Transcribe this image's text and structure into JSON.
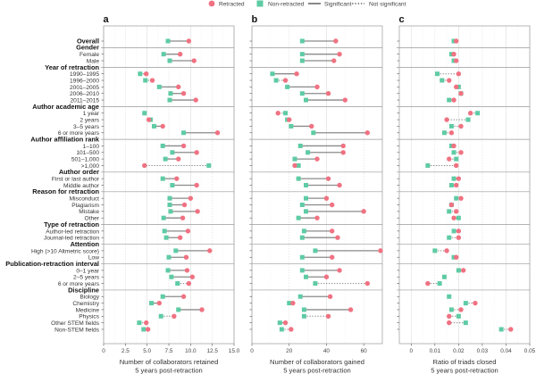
{
  "legend": {
    "retracted": "Retracted",
    "non_retracted": "Non-retracted",
    "significant": "Significant",
    "not_significant": "Not significant"
  },
  "colors": {
    "retracted": "#f07282",
    "non_retracted": "#5ecba4",
    "line": "#8a8a8a",
    "grid": "#dddddd",
    "frame": "#999999"
  },
  "chart_data": [
    {
      "type": "dumbbell",
      "panel": "a",
      "xlabel": "Number of collaborators retained\n5 years post-retraction",
      "xlabel_lines": [
        "Number of collaborators retained",
        "5 years post-retraction"
      ],
      "xlim": [
        0,
        15
      ],
      "xticks": [
        0,
        2.5,
        5.0,
        7.5,
        10.0,
        12.5,
        15.0
      ],
      "xtick_labels": [
        "0",
        "2.5",
        "5.0",
        "7.5",
        "10.0",
        "12.5",
        "15.0"
      ],
      "grid": true,
      "rows": [
        {
          "label": "Overall",
          "header": true,
          "retracted": 9.8,
          "non_retracted": 7.4,
          "sig": true
        },
        {
          "label": "Gender",
          "header": true
        },
        {
          "label": "Female",
          "retracted": 8.8,
          "non_retracted": 6.9,
          "sig": true
        },
        {
          "label": "Male",
          "retracted": 10.4,
          "non_retracted": 7.6,
          "sig": true
        },
        {
          "label": "Year of retraction",
          "header": true
        },
        {
          "label": "1990–1995",
          "retracted": 4.9,
          "non_retracted": 4.2,
          "sig": false
        },
        {
          "label": "1996–2000",
          "retracted": 5.6,
          "non_retracted": 4.8,
          "sig": false
        },
        {
          "label": "2001–2005",
          "retracted": 8.6,
          "non_retracted": 6.4,
          "sig": true
        },
        {
          "label": "2006–2010",
          "retracted": 9.2,
          "non_retracted": 7.7,
          "sig": true
        },
        {
          "label": "2011–2015",
          "retracted": 10.6,
          "non_retracted": 7.6,
          "sig": true
        },
        {
          "label": "Author academic age",
          "header": true
        },
        {
          "label": "1 year",
          "retracted": null,
          "non_retracted": 4.7,
          "sig": true
        },
        {
          "label": "2 years",
          "retracted": 5.2,
          "non_retracted": 5.4,
          "sig": true
        },
        {
          "label": "3–5 years",
          "retracted": 6.8,
          "non_retracted": 5.8,
          "sig": true
        },
        {
          "label": "6 or more years",
          "retracted": 13.1,
          "non_retracted": 9.2,
          "sig": true
        },
        {
          "label": "Author affiliation rank",
          "header": true
        },
        {
          "label": "1–100",
          "retracted": 9.2,
          "non_retracted": 6.8,
          "sig": true
        },
        {
          "label": "101–500",
          "retracted": 10.7,
          "non_retracted": 7.9,
          "sig": true
        },
        {
          "label": "501–1,000",
          "retracted": 8.6,
          "non_retracted": 7.1,
          "sig": true
        },
        {
          "label": ">1,000",
          "retracted": 4.7,
          "non_retracted": 12.1,
          "sig": false
        },
        {
          "label": "Author order",
          "header": true
        },
        {
          "label": "First or last author",
          "retracted": 8.4,
          "non_retracted": 6.8,
          "sig": true
        },
        {
          "label": "Middle author",
          "retracted": 10.7,
          "non_retracted": 7.9,
          "sig": true
        },
        {
          "label": "Reason for retraction",
          "header": true
        },
        {
          "label": "Misconduct",
          "retracted": 10.0,
          "non_retracted": 7.6,
          "sig": true
        },
        {
          "label": "Plagiarism",
          "retracted": 9.3,
          "non_retracted": 7.6,
          "sig": true
        },
        {
          "label": "Mistake",
          "retracted": 10.8,
          "non_retracted": 7.7,
          "sig": true
        },
        {
          "label": "Other",
          "retracted": 9.1,
          "non_retracted": 6.9,
          "sig": true
        },
        {
          "label": "Type of retraction",
          "header": true
        },
        {
          "label": "Author-led retraction",
          "retracted": 9.7,
          "non_retracted": 7.0,
          "sig": true
        },
        {
          "label": "Journal-led retraction",
          "retracted": 8.8,
          "non_retracted": 7.2,
          "sig": true
        },
        {
          "label": "Attention",
          "header": true
        },
        {
          "label": "High (>10 Altmetric score)",
          "retracted": 12.2,
          "non_retracted": 8.3,
          "sig": true
        },
        {
          "label": "Low",
          "retracted": 9.5,
          "non_retracted": 7.5,
          "sig": true
        },
        {
          "label": "Publication-retraction interval",
          "header": true
        },
        {
          "label": "0–1 year",
          "retracted": 9.6,
          "non_retracted": 7.4,
          "sig": true
        },
        {
          "label": "2–5 years",
          "retracted": 10.2,
          "non_retracted": 7.8,
          "sig": true
        },
        {
          "label": "6 or more years",
          "retracted": 9.8,
          "non_retracted": 8.5,
          "sig": false
        },
        {
          "label": "Discipline",
          "header": true
        },
        {
          "label": "Biology",
          "retracted": 9.2,
          "non_retracted": 6.8,
          "sig": true
        },
        {
          "label": "Chemistry",
          "retracted": 6.4,
          "non_retracted": 5.5,
          "sig": true
        },
        {
          "label": "Medicine",
          "retracted": 11.3,
          "non_retracted": 8.6,
          "sig": true
        },
        {
          "label": "Physics",
          "retracted": 8.1,
          "non_retracted": 6.6,
          "sig": false
        },
        {
          "label": "Other STEM fields",
          "retracted": 4.9,
          "non_retracted": 4.1,
          "sig": false
        },
        {
          "label": "Non-STEM fields",
          "retracted": 5.1,
          "non_retracted": 4.6,
          "sig": false
        }
      ]
    },
    {
      "type": "dumbbell",
      "panel": "b",
      "xlabel_lines": [
        "Number of collaborators gained",
        "5 years post-retraction"
      ],
      "xlim": [
        0,
        70
      ],
      "xticks": [
        0,
        20,
        40,
        60
      ],
      "xtick_labels": [
        "0",
        "20",
        "40",
        "60"
      ],
      "grid": true,
      "rows": [
        {
          "label": "Overall",
          "retracted": 45,
          "non_retracted": 27,
          "sig": true
        },
        {
          "label": "Gender",
          "header": true
        },
        {
          "label": "Female",
          "retracted": 47,
          "non_retracted": 27,
          "sig": true
        },
        {
          "label": "Male",
          "retracted": 44,
          "non_retracted": 27,
          "sig": true
        },
        {
          "label": "Year of retraction",
          "header": true
        },
        {
          "label": "1990–1995",
          "retracted": 24,
          "non_retracted": 11,
          "sig": true
        },
        {
          "label": "1996–2000",
          "retracted": 18,
          "non_retracted": 13,
          "sig": false
        },
        {
          "label": "2001–2005",
          "retracted": 35,
          "non_retracted": 19,
          "sig": true
        },
        {
          "label": "2006–2010",
          "retracted": 41,
          "non_retracted": 27,
          "sig": true
        },
        {
          "label": "2011–2015",
          "retracted": 50,
          "non_retracted": 29,
          "sig": true
        },
        {
          "label": "Author academic age",
          "header": true
        },
        {
          "label": "1 year",
          "retracted": 14,
          "non_retracted": 18,
          "sig": false
        },
        {
          "label": "2 years",
          "retracted": 20,
          "non_retracted": 19,
          "sig": true
        },
        {
          "label": "3–5 years",
          "retracted": 32,
          "non_retracted": 21,
          "sig": true
        },
        {
          "label": "6 or more years",
          "retracted": 62,
          "non_retracted": 33,
          "sig": true
        },
        {
          "label": "Author affiliation rank",
          "header": true
        },
        {
          "label": "1–100",
          "retracted": 49,
          "non_retracted": 26,
          "sig": true
        },
        {
          "label": "101–500",
          "retracted": 49,
          "non_retracted": 30,
          "sig": true
        },
        {
          "label": "501–1,000",
          "retracted": 35,
          "non_retracted": 23,
          "sig": true
        },
        {
          "label": ">1,000",
          "retracted": 23,
          "non_retracted": 25,
          "sig": true
        },
        {
          "label": "Author order",
          "header": true
        },
        {
          "label": "First or last author",
          "retracted": 41,
          "non_retracted": 25,
          "sig": true
        },
        {
          "label": "Middle author",
          "retracted": 47,
          "non_retracted": 29,
          "sig": true
        },
        {
          "label": "Reason for retraction",
          "header": true
        },
        {
          "label": "Misconduct",
          "retracted": 40,
          "non_retracted": 29,
          "sig": true
        },
        {
          "label": "Plagiarism",
          "retracted": 43,
          "non_retracted": 27,
          "sig": true
        },
        {
          "label": "Mistake",
          "retracted": 60,
          "non_retracted": 29,
          "sig": true
        },
        {
          "label": "Other",
          "retracted": 35,
          "non_retracted": 25,
          "sig": true
        },
        {
          "label": "Type of retraction",
          "header": true
        },
        {
          "label": "Author-led retraction",
          "retracted": 43,
          "non_retracted": 28,
          "sig": true
        },
        {
          "label": "Journal-led retraction",
          "retracted": 46,
          "non_retracted": 27,
          "sig": true
        },
        {
          "label": "Attention",
          "header": true
        },
        {
          "label": "High (>10 Altmetric score)",
          "retracted": 69,
          "non_retracted": 34,
          "sig": true
        },
        {
          "label": "Low",
          "retracted": 43,
          "non_retracted": 27,
          "sig": true
        },
        {
          "label": "Publication-retraction interval",
          "header": true
        },
        {
          "label": "0–1 year",
          "retracted": 47,
          "non_retracted": 27,
          "sig": true
        },
        {
          "label": "2–5 years",
          "retracted": 40,
          "non_retracted": 29,
          "sig": true
        },
        {
          "label": "6 or more years",
          "retracted": 62,
          "non_retracted": 34,
          "sig": false
        },
        {
          "label": "Discipline",
          "header": true
        },
        {
          "label": "Biology",
          "retracted": 42,
          "non_retracted": 26,
          "sig": true
        },
        {
          "label": "Chemistry",
          "retracted": 22,
          "non_retracted": 20,
          "sig": true
        },
        {
          "label": "Medicine",
          "retracted": 53,
          "non_retracted": 28,
          "sig": true
        },
        {
          "label": "Physics",
          "retracted": 41,
          "non_retracted": 28,
          "sig": false
        },
        {
          "label": "Other STEM fields",
          "retracted": 18,
          "non_retracted": 15,
          "sig": true
        },
        {
          "label": "Non-STEM fields",
          "retracted": 21,
          "non_retracted": 16,
          "sig": false
        }
      ]
    },
    {
      "type": "dumbbell",
      "panel": "c",
      "xlabel_lines": [
        "Ratio of triads closed",
        "5 years post-retraction"
      ],
      "xlim": [
        -0.005,
        0.05
      ],
      "xticks": [
        0,
        0.01,
        0.02,
        0.03,
        0.04,
        0.05
      ],
      "xtick_labels": [
        "0",
        "0.01",
        "0.02",
        "0.03",
        "0.04",
        "0.05"
      ],
      "grid": true,
      "rows": [
        {
          "label": "Overall",
          "retracted": 0.019,
          "non_retracted": 0.018,
          "sig": true
        },
        {
          "label": "Gender",
          "header": true
        },
        {
          "label": "Female",
          "retracted": 0.018,
          "non_retracted": 0.017,
          "sig": true
        },
        {
          "label": "Male",
          "retracted": 0.019,
          "non_retracted": 0.018,
          "sig": true
        },
        {
          "label": "Year of retraction",
          "header": true
        },
        {
          "label": "1990–1995",
          "retracted": 0.02,
          "non_retracted": 0.011,
          "sig": false
        },
        {
          "label": "1996–2000",
          "retracted": 0.016,
          "non_retracted": 0.013,
          "sig": false
        },
        {
          "label": "2001–2005",
          "retracted": 0.019,
          "non_retracted": 0.02,
          "sig": true
        },
        {
          "label": "2006–2010",
          "retracted": 0.021,
          "non_retracted": 0.021,
          "sig": true
        },
        {
          "label": "2011–2015",
          "retracted": 0.018,
          "non_retracted": 0.016,
          "sig": true
        },
        {
          "label": "Author academic age",
          "header": true
        },
        {
          "label": "1 year",
          "retracted": 0.025,
          "non_retracted": 0.028,
          "sig": false
        },
        {
          "label": "2 years",
          "retracted": 0.015,
          "non_retracted": 0.024,
          "sig": false
        },
        {
          "label": "3–5 years",
          "retracted": 0.021,
          "non_retracted": 0.017,
          "sig": false
        },
        {
          "label": "6 or more years",
          "retracted": 0.017,
          "non_retracted": 0.014,
          "sig": false
        },
        {
          "label": "Author affiliation rank",
          "header": true
        },
        {
          "label": "1–100",
          "retracted": 0.018,
          "non_retracted": 0.017,
          "sig": true
        },
        {
          "label": "101–500",
          "retracted": 0.021,
          "non_retracted": 0.018,
          "sig": false
        },
        {
          "label": "501–1,000",
          "retracted": 0.016,
          "non_retracted": 0.019,
          "sig": false
        },
        {
          "label": ">1,000",
          "retracted": 0.019,
          "non_retracted": 0.007,
          "sig": false
        },
        {
          "label": "Author order",
          "header": true
        },
        {
          "label": "First or last author",
          "retracted": 0.02,
          "non_retracted": 0.018,
          "sig": true
        },
        {
          "label": "Middle author",
          "retracted": 0.019,
          "non_retracted": 0.017,
          "sig": true
        },
        {
          "label": "Reason for retraction",
          "header": true
        },
        {
          "label": "Misconduct",
          "retracted": 0.021,
          "non_retracted": 0.019,
          "sig": false
        },
        {
          "label": "Plagiarism",
          "retracted": 0.017,
          "non_retracted": 0.017,
          "sig": true
        },
        {
          "label": "Mistake",
          "retracted": 0.019,
          "non_retracted": 0.016,
          "sig": false
        },
        {
          "label": "Other",
          "retracted": 0.018,
          "non_retracted": 0.02,
          "sig": true
        },
        {
          "label": "Type of retraction",
          "header": true
        },
        {
          "label": "Author-led retraction",
          "retracted": 0.02,
          "non_retracted": 0.018,
          "sig": true
        },
        {
          "label": "Journal-led retraction",
          "retracted": 0.02,
          "non_retracted": 0.016,
          "sig": false
        },
        {
          "label": "Attention",
          "header": true
        },
        {
          "label": "High (>10 Altmetric score)",
          "retracted": 0.015,
          "non_retracted": 0.01,
          "sig": false
        },
        {
          "label": "Low",
          "retracted": 0.019,
          "non_retracted": 0.018,
          "sig": true
        },
        {
          "label": "Publication-retraction interval",
          "header": true
        },
        {
          "label": "0–1 year",
          "retracted": 0.022,
          "non_retracted": 0.02,
          "sig": true
        },
        {
          "label": "2–5 years",
          "retracted": null,
          "non_retracted": 0.014,
          "sig": true
        },
        {
          "label": "6 or more years",
          "retracted": 0.007,
          "non_retracted": 0.012,
          "sig": false
        },
        {
          "label": "Discipline",
          "header": true
        },
        {
          "label": "Biology",
          "retracted": null,
          "non_retracted": 0.016,
          "sig": true
        },
        {
          "label": "Chemistry",
          "retracted": 0.027,
          "non_retracted": 0.023,
          "sig": false
        },
        {
          "label": "Medicine",
          "retracted": 0.021,
          "non_retracted": 0.017,
          "sig": false
        },
        {
          "label": "Physics",
          "retracted": 0.016,
          "non_retracted": 0.02,
          "sig": false
        },
        {
          "label": "Other STEM fields",
          "retracted": 0.016,
          "non_retracted": 0.023,
          "sig": false
        },
        {
          "label": "Non-STEM fields",
          "retracted": 0.042,
          "non_retracted": 0.038,
          "sig": false
        }
      ]
    }
  ]
}
